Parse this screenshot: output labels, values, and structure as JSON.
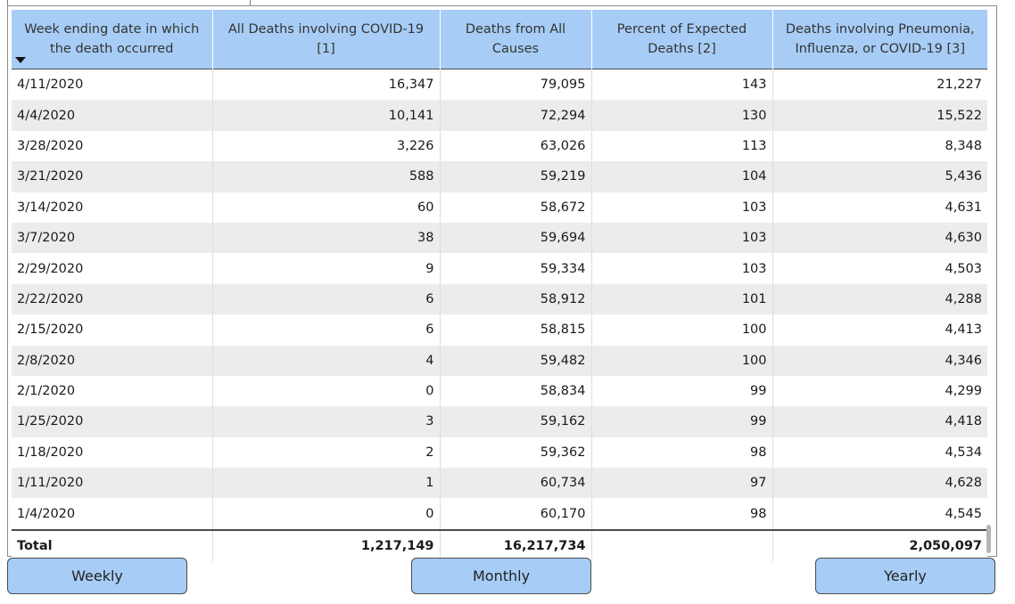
{
  "table": {
    "headers": [
      "Week ending date in which the death occurred",
      "All Deaths involving COVID-19 [1]",
      "Deaths from All Causes",
      "Percent of Expected Deaths [2]",
      "Deaths involving Pneumonia, Influenza, or COVID-19 [3]"
    ],
    "rows": [
      [
        "4/11/2020",
        "16,347",
        "79,095",
        "143",
        "21,227"
      ],
      [
        "4/4/2020",
        "10,141",
        "72,294",
        "130",
        "15,522"
      ],
      [
        "3/28/2020",
        "3,226",
        "63,026",
        "113",
        "8,348"
      ],
      [
        "3/21/2020",
        "588",
        "59,219",
        "104",
        "5,436"
      ],
      [
        "3/14/2020",
        "60",
        "58,672",
        "103",
        "4,631"
      ],
      [
        "3/7/2020",
        "38",
        "59,694",
        "103",
        "4,630"
      ],
      [
        "2/29/2020",
        "9",
        "59,334",
        "103",
        "4,503"
      ],
      [
        "2/22/2020",
        "6",
        "58,912",
        "101",
        "4,288"
      ],
      [
        "2/15/2020",
        "6",
        "58,815",
        "100",
        "4,413"
      ],
      [
        "2/8/2020",
        "4",
        "59,482",
        "100",
        "4,346"
      ],
      [
        "2/1/2020",
        "0",
        "58,834",
        "99",
        "4,299"
      ],
      [
        "1/25/2020",
        "3",
        "59,162",
        "99",
        "4,418"
      ],
      [
        "1/18/2020",
        "2",
        "59,362",
        "98",
        "4,534"
      ],
      [
        "1/11/2020",
        "1",
        "60,734",
        "97",
        "4,628"
      ],
      [
        "1/4/2020",
        "0",
        "60,170",
        "98",
        "4,545"
      ]
    ],
    "total": [
      "Total",
      "1,217,149",
      "16,217,734",
      "",
      "2,050,097"
    ]
  },
  "buttons": {
    "weekly": "Weekly",
    "monthly": "Monthly",
    "yearly": "Yearly"
  },
  "colors": {
    "header_bg": "#a7cdf6",
    "button_bg": "#a7cdf6",
    "stripe": "#ececec"
  }
}
